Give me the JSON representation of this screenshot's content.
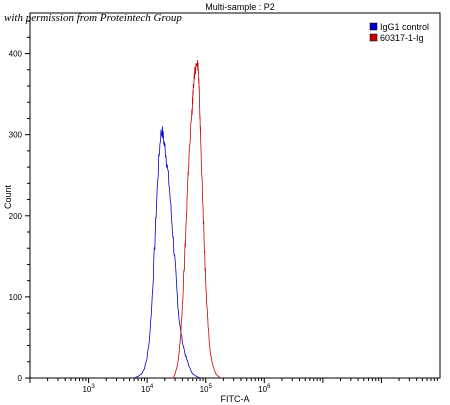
{
  "watermark": "with permission from Proteintech Group",
  "chart_data": {
    "type": "line",
    "title": "Multi-sample : P2",
    "xlabel": "FITC-A",
    "ylabel": "Count",
    "x_scale": "log",
    "xlim": [
      100,
      1000000000
    ],
    "ylim": [
      0,
      450
    ],
    "x_ticks": [
      {
        "value": 1000,
        "base": "10",
        "exp": "3"
      },
      {
        "value": 10000,
        "base": "10",
        "exp": "4"
      },
      {
        "value": 100000,
        "base": "10",
        "exp": "5"
      },
      {
        "value": 1000000,
        "base": "10",
        "exp": "6"
      }
    ],
    "y_ticks": [
      0,
      100,
      200,
      300,
      400
    ],
    "legend_position": "top-right",
    "series": [
      {
        "name": "IgG1 control",
        "color": "#0000cc",
        "points": [
          [
            6000,
            0
          ],
          [
            7000,
            2
          ],
          [
            8000,
            5
          ],
          [
            9000,
            12
          ],
          [
            10000,
            25
          ],
          [
            11000,
            50
          ],
          [
            12000,
            90
          ],
          [
            13000,
            140
          ],
          [
            14000,
            190
          ],
          [
            15000,
            240
          ],
          [
            16000,
            275
          ],
          [
            17000,
            300
          ],
          [
            18000,
            305
          ],
          [
            19000,
            295
          ],
          [
            20000,
            285
          ],
          [
            21000,
            275
          ],
          [
            22000,
            260
          ],
          [
            24000,
            235
          ],
          [
            26000,
            200
          ],
          [
            28000,
            170
          ],
          [
            30000,
            140
          ],
          [
            32000,
            110
          ],
          [
            34000,
            85
          ],
          [
            36000,
            65
          ],
          [
            40000,
            45
          ],
          [
            45000,
            28
          ],
          [
            50000,
            18
          ],
          [
            55000,
            10
          ],
          [
            60000,
            5
          ],
          [
            70000,
            2
          ],
          [
            80000,
            0
          ]
        ]
      },
      {
        "name": "60317-1-Ig",
        "color": "#cc0000",
        "points": [
          [
            28000,
            0
          ],
          [
            30000,
            5
          ],
          [
            32000,
            12
          ],
          [
            34000,
            22
          ],
          [
            36000,
            40
          ],
          [
            38000,
            60
          ],
          [
            40000,
            90
          ],
          [
            42000,
            120
          ],
          [
            44000,
            150
          ],
          [
            46000,
            185
          ],
          [
            48000,
            220
          ],
          [
            50000,
            250
          ],
          [
            52000,
            275
          ],
          [
            55000,
            300
          ],
          [
            58000,
            325
          ],
          [
            60000,
            345
          ],
          [
            62000,
            360
          ],
          [
            65000,
            375
          ],
          [
            68000,
            385
          ],
          [
            71000,
            395
          ],
          [
            74000,
            385
          ],
          [
            76000,
            370
          ],
          [
            78000,
            345
          ],
          [
            80000,
            320
          ],
          [
            83000,
            290
          ],
          [
            86000,
            250
          ],
          [
            90000,
            210
          ],
          [
            95000,
            160
          ],
          [
            100000,
            120
          ],
          [
            105000,
            90
          ],
          [
            110000,
            65
          ],
          [
            115000,
            45
          ],
          [
            120000,
            30
          ],
          [
            130000,
            18
          ],
          [
            140000,
            10
          ],
          [
            150000,
            5
          ],
          [
            165000,
            2
          ],
          [
            180000,
            0
          ]
        ]
      }
    ]
  }
}
